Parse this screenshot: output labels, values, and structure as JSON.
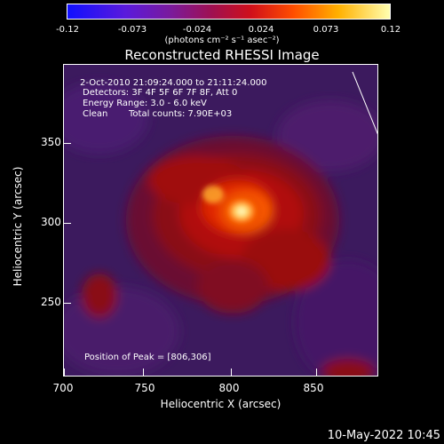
{
  "colorbar": {
    "ticks": [
      "-0.12",
      "-0.073",
      "-0.024",
      "0.024",
      "0.073",
      "0.12"
    ],
    "units": "(photons cm⁻² s⁻¹ asec⁻²)"
  },
  "title": "Reconstructed RHESSI Image",
  "info": {
    "time_range": "2-Oct-2010 21:09:24.000 to 21:11:24.000",
    "detectors": "Detectors: 3F 4F 5F 6F 7F 8F, Att 0",
    "energy": "Energy Range: 3.0 - 6.0 keV",
    "clean": "Clean",
    "total_counts": "Total counts: 7.90E+03",
    "peak": "Position of Peak = [806,306]"
  },
  "axes": {
    "xlabel": "Heliocentric X (arcsec)",
    "ylabel": "Heliocentric Y (arcsec)",
    "xticks": [
      "700",
      "750",
      "800",
      "850"
    ],
    "yticks": [
      "350",
      "300",
      "250"
    ]
  },
  "timestamp": "10-May-2022 10:45",
  "colors": {
    "background": "#000000",
    "low": "#1010ff",
    "high": "#ffffb0"
  }
}
